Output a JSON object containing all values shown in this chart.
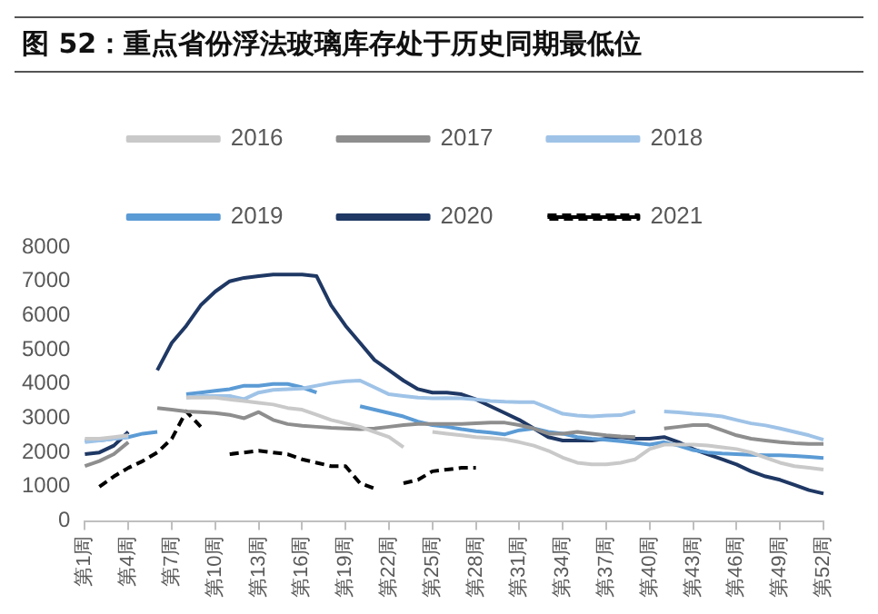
{
  "chart_data": {
    "type": "line",
    "title": "图 52：重点省份浮法玻璃库存处于历史同期最低位",
    "categories": [
      "第1周",
      null,
      null,
      "第4周",
      null,
      null,
      "第7周",
      null,
      null,
      "第10周",
      null,
      null,
      "第13周",
      null,
      null,
      "第16周",
      null,
      null,
      "第19周",
      null,
      null,
      "第22周",
      null,
      null,
      "第25周",
      null,
      null,
      "第28周",
      null,
      null,
      "第31周",
      null,
      null,
      "第34周",
      null,
      null,
      "第37周",
      null,
      null,
      "第40周",
      null,
      null,
      "第43周",
      null,
      null,
      "第46周",
      null,
      null,
      "第49周",
      null,
      null,
      "第52周"
    ],
    "ylim": [
      0,
      8000
    ],
    "yticks": [
      0,
      1000,
      2000,
      3000,
      4000,
      5000,
      6000,
      7000,
      8000
    ],
    "legend": "top",
    "marker": "none",
    "series": [
      {
        "name": "2016",
        "color": "#c9c9c9",
        "values": [
          2400,
          2400,
          2450,
          2500,
          null,
          null,
          null,
          3600,
          3600,
          3600,
          3550,
          3500,
          3450,
          3400,
          3300,
          3250,
          3100,
          2950,
          2850,
          2750,
          2600,
          2450,
          2150,
          null,
          2600,
          2550,
          2500,
          2450,
          2420,
          2380,
          2300,
          2200,
          2050,
          1850,
          1700,
          1650,
          1650,
          1700,
          1800,
          2100,
          2230,
          2230,
          2230,
          2200,
          2150,
          2100,
          2000,
          1850,
          1700,
          1600,
          1550,
          1500
        ]
      },
      {
        "name": "2017",
        "color": "#8e8e8e",
        "values": [
          1600,
          1750,
          1950,
          2300,
          null,
          3300,
          3250,
          3200,
          3180,
          3150,
          3100,
          3000,
          3180,
          2950,
          2830,
          2780,
          2750,
          2720,
          2700,
          2680,
          2700,
          2750,
          2800,
          2830,
          2830,
          2830,
          2830,
          2850,
          2870,
          2870,
          2800,
          2700,
          2550,
          2550,
          2600,
          2550,
          2500,
          2470,
          2450,
          null,
          2700,
          2750,
          2800,
          2800,
          2650,
          2500,
          2400,
          2350,
          2300,
          2270,
          2250,
          2250
        ]
      },
      {
        "name": "2018",
        "color": "#9fc3e7",
        "values": [
          2300,
          2350,
          2400,
          2450,
          null,
          null,
          null,
          3600,
          3650,
          3650,
          3650,
          3560,
          3750,
          3830,
          3850,
          3870,
          3950,
          4030,
          4080,
          4100,
          3900,
          3700,
          3650,
          3600,
          3580,
          3590,
          3580,
          3550,
          3500,
          3480,
          3470,
          3470,
          3300,
          3130,
          3080,
          3050,
          3080,
          3090,
          3200,
          null,
          3200,
          3170,
          3130,
          3100,
          3050,
          2950,
          2850,
          2790,
          2700,
          2600,
          2500,
          2370
        ]
      },
      {
        "name": "2019",
        "color": "#5b9bd5",
        "values": [
          2350,
          2350,
          2400,
          2450,
          2550,
          2600,
          null,
          3700,
          3750,
          3800,
          3850,
          3950,
          3950,
          4000,
          4000,
          3900,
          3750,
          null,
          null,
          3350,
          3250,
          3150,
          3050,
          2900,
          2800,
          2750,
          2680,
          2620,
          2580,
          2530,
          2650,
          2700,
          2600,
          2550,
          2450,
          2400,
          2370,
          2330,
          2280,
          2230,
          2300,
          2200,
          2070,
          2000,
          1970,
          1950,
          1930,
          1920,
          1920,
          1900,
          1870,
          1840
        ]
      },
      {
        "name": "2020",
        "color": "#1f3864",
        "values": [
          1950,
          2000,
          2200,
          2600,
          null,
          4400,
          5200,
          5700,
          6300,
          6700,
          7000,
          7100,
          7150,
          7200,
          7200,
          7200,
          7150,
          6300,
          5700,
          5200,
          4700,
          4400,
          4100,
          3850,
          3750,
          3750,
          3700,
          3550,
          3350,
          3150,
          2950,
          2700,
          2450,
          2350,
          2350,
          2350,
          2400,
          2450,
          2400,
          2400,
          2450,
          2300,
          2100,
          1950,
          1800,
          1650,
          1450,
          1300,
          1200,
          1050,
          900,
          800
        ]
      },
      {
        "name": "2021",
        "color": "#000000",
        "line_style": "dashed",
        "values": [
          null,
          1000,
          1300,
          1550,
          1750,
          2000,
          2400,
          3200,
          2750,
          null,
          1950,
          2000,
          2050,
          2000,
          1950,
          1800,
          1700,
          1600,
          1600,
          1100,
          950,
          null,
          1100,
          1200,
          1450,
          1500,
          1550,
          1550,
          null,
          null,
          null,
          null,
          null,
          null,
          null,
          null,
          null,
          null,
          null,
          null,
          null,
          null,
          null,
          null,
          null,
          null,
          null,
          null,
          null,
          null,
          null,
          null
        ]
      }
    ]
  }
}
